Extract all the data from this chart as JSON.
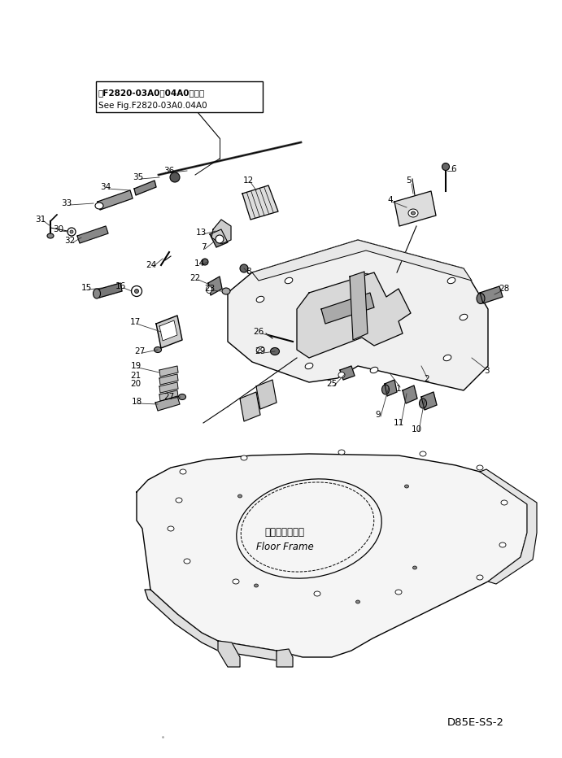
{
  "bg_color": "#ffffff",
  "line_color": "#000000",
  "text_color": "#000000",
  "fig_width": 6.91,
  "fig_height": 9.32,
  "dpi": 100,
  "title_line1": "笮F2820-03A0　04A0図参照",
  "title_line2": "See Fig.F2820-03A0.04A0",
  "model": "D85E-SS-2",
  "floor_frame_jp": "フロアフレーム",
  "floor_frame_en": "Floor Frame"
}
